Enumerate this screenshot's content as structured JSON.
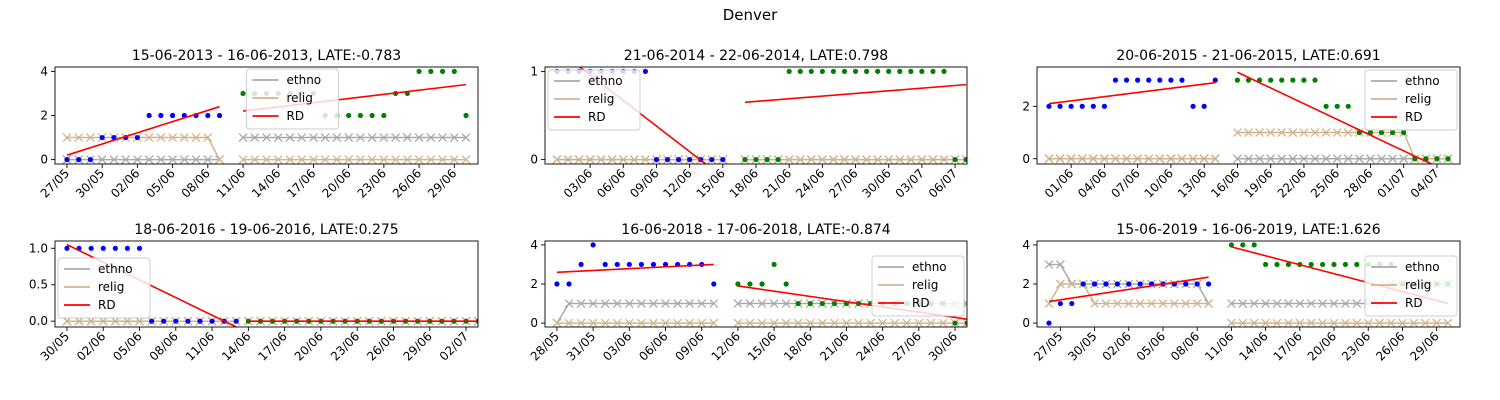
{
  "figure_title": "Denver",
  "colors": {
    "ethno": "#a9a9a9",
    "relig": "#d2b48c",
    "rd": "#ff0000",
    "pre_points": "#0000ff",
    "post_points": "#008000",
    "axis": "#000000"
  },
  "legend_labels": [
    "ethno",
    "relig",
    "RD"
  ],
  "chart_data": [
    {
      "type": "scatter",
      "title": "15-06-2013 - 16-06-2013, LATE:-0.783",
      "x_start": "2013-05-27",
      "x_end": "2013-06-30",
      "threshold": "2013-06-10",
      "ylim": [
        -0.2,
        4.2
      ],
      "yticks": [
        0,
        2,
        4
      ],
      "xtick_labels": [
        "27/05",
        "30/05",
        "02/06",
        "05/06",
        "08/06",
        "11/06",
        "14/06",
        "17/06",
        "20/06",
        "23/06",
        "26/06",
        "29/06"
      ],
      "legend_position": "upper-center",
      "pre_values": [
        0,
        0,
        0,
        1,
        1,
        1,
        1,
        2,
        2,
        2,
        2,
        2,
        2,
        2
      ],
      "post_values": [
        3,
        3,
        3,
        3,
        3,
        3,
        3,
        2,
        2,
        2,
        2,
        2,
        2,
        3,
        3,
        4,
        4,
        4,
        4,
        2
      ],
      "ethno_pre": [
        0,
        0,
        0,
        0,
        0,
        0,
        0,
        0,
        0,
        0,
        0,
        0,
        0,
        0
      ],
      "ethno_post": [
        1,
        1,
        1,
        1,
        1,
        1,
        1,
        1,
        1,
        1,
        1,
        1,
        1,
        1,
        1,
        1,
        1,
        1,
        1,
        1
      ],
      "relig_pre": [
        1,
        1,
        1,
        1,
        1,
        1,
        1,
        1,
        1,
        1,
        1,
        1,
        1,
        0
      ],
      "relig_post": [
        0,
        0,
        0,
        0,
        0,
        0,
        0,
        0,
        0,
        0,
        0,
        0,
        0,
        0,
        0,
        0,
        0,
        0,
        0,
        0
      ],
      "rd_pre": [
        0.2,
        2.4
      ],
      "rd_post": [
        2.2,
        3.4
      ]
    },
    {
      "type": "scatter",
      "title": "21-06-2014 - 22-06-2014, LATE:0.798",
      "x_start": "2014-05-31",
      "x_end": "2014-07-06",
      "threshold": "2014-06-16",
      "ylim": [
        -0.05,
        1.05
      ],
      "yticks": [
        0,
        1
      ],
      "xtick_labels": [
        "03/06",
        "06/06",
        "09/06",
        "12/06",
        "15/06",
        "18/06",
        "21/06",
        "24/06",
        "27/06",
        "30/06",
        "03/07",
        "06/07"
      ],
      "legend_position": "upper-left",
      "pre_values": [
        1,
        1,
        1,
        1,
        1,
        1,
        1,
        1,
        1,
        0,
        0,
        0,
        0,
        0,
        0,
        0
      ],
      "post_values": [
        0,
        0,
        0,
        0,
        1,
        1,
        1,
        1,
        1,
        1,
        1,
        1,
        1,
        1,
        1,
        1,
        1,
        1,
        1,
        0,
        0
      ],
      "ethno_pre": [
        0,
        0,
        0,
        0,
        0,
        0,
        0,
        0,
        0,
        0,
        0,
        0,
        0,
        0,
        0,
        0
      ],
      "ethno_post": [
        0,
        0,
        0,
        0,
        0,
        0,
        0,
        0,
        0,
        0,
        0,
        0,
        0,
        0,
        0,
        0,
        0,
        0,
        0,
        0,
        0
      ],
      "relig_pre": [
        0,
        0,
        0,
        0,
        0,
        0,
        0,
        0,
        0,
        0,
        0,
        0,
        0,
        0,
        0,
        0
      ],
      "relig_post": [
        0,
        0,
        0,
        0,
        0,
        0,
        0,
        0,
        0,
        0,
        0,
        0,
        0,
        0,
        0,
        0,
        0,
        0,
        0,
        0,
        0
      ],
      "rd_pre": [
        1.25,
        -0.2
      ],
      "rd_post": [
        0.65,
        0.85
      ]
    },
    {
      "type": "scatter",
      "title": "20-06-2015 - 21-06-2015, LATE:0.691",
      "x_start": "2015-05-30",
      "x_end": "2015-07-05",
      "threshold": "2015-06-15",
      "ylim": [
        -0.2,
        3.5
      ],
      "yticks": [
        0,
        2
      ],
      "xtick_labels": [
        "01/06",
        "04/06",
        "07/06",
        "10/06",
        "13/06",
        "16/06",
        "19/06",
        "22/06",
        "25/06",
        "28/06",
        "01/07",
        "04/07"
      ],
      "legend_position": "upper-right",
      "pre_values": [
        2,
        2,
        2,
        2,
        2,
        2,
        3,
        3,
        3,
        3,
        3,
        3,
        3,
        2,
        2,
        3
      ],
      "post_values": [
        3,
        3,
        3,
        3,
        3,
        3,
        3,
        3,
        2,
        2,
        2,
        1,
        1,
        1,
        1,
        1,
        0,
        0,
        0,
        0
      ],
      "ethno_pre": [
        0,
        0,
        0,
        0,
        0,
        0,
        0,
        0,
        0,
        0,
        0,
        0,
        0,
        0,
        0,
        0
      ],
      "ethno_post": [
        0,
        0,
        0,
        0,
        0,
        0,
        0,
        0,
        0,
        0,
        0,
        0,
        0,
        0,
        0,
        0,
        0,
        0,
        0,
        0
      ],
      "relig_pre": [
        0,
        0,
        0,
        0,
        0,
        0,
        0,
        0,
        0,
        0,
        0,
        0,
        0,
        0,
        0,
        0
      ],
      "relig_post": [
        1,
        1,
        1,
        1,
        1,
        1,
        1,
        1,
        1,
        1,
        1,
        1,
        1,
        1,
        1,
        1,
        0,
        0,
        0,
        0
      ],
      "rd_pre": [
        2.1,
        2.9
      ],
      "rd_post": [
        3.3,
        -0.5
      ]
    },
    {
      "type": "scatter",
      "title": "18-06-2016 - 19-06-2016, LATE:0.275",
      "x_start": "2016-05-30",
      "x_end": "2016-07-02",
      "threshold": "2016-06-13",
      "ylim": [
        -0.08,
        1.1
      ],
      "yticks": [
        0.0,
        0.5,
        1.0
      ],
      "ytick_labels": [
        "0.0",
        "0.5",
        "1.0"
      ],
      "xtick_labels": [
        "30/05",
        "02/06",
        "05/06",
        "08/06",
        "11/06",
        "14/06",
        "17/06",
        "20/06",
        "23/06",
        "26/06",
        "29/06",
        "02/07"
      ],
      "legend_position": "left",
      "pre_values": [
        1,
        1,
        1,
        1,
        1,
        1,
        1,
        0,
        0,
        0,
        0,
        0,
        0,
        0,
        0
      ],
      "post_values": [
        0,
        0,
        0,
        0,
        0,
        0,
        0,
        0,
        0,
        0,
        0,
        0,
        0,
        0,
        0,
        0,
        0,
        0,
        0,
        0
      ],
      "ethno_pre": [
        0,
        0,
        0,
        0,
        0,
        0,
        0,
        0,
        0,
        0,
        0,
        0,
        0,
        0,
        0
      ],
      "ethno_post": [
        0,
        0,
        0,
        0,
        0,
        0,
        0,
        0,
        0,
        0,
        0,
        0,
        0,
        0,
        0,
        0,
        0,
        0,
        0,
        0
      ],
      "relig_pre": [
        0,
        0,
        0,
        0,
        0,
        0,
        0,
        0,
        0,
        0,
        0,
        0,
        0,
        0,
        0
      ],
      "relig_post": [
        0,
        0,
        0,
        0,
        0,
        0,
        0,
        0,
        0,
        0,
        0,
        0,
        0,
        0,
        0,
        0,
        0,
        0,
        0,
        0
      ],
      "rd_pre": [
        1.05,
        -0.08
      ],
      "rd_post": [
        0.0,
        0.0
      ]
    },
    {
      "type": "scatter",
      "title": "16-06-2018 - 17-06-2018, LATE:-0.874",
      "x_start": "2018-05-28",
      "x_end": "2018-06-30",
      "threshold": "2018-06-11",
      "ylim": [
        -0.2,
        4.2
      ],
      "yticks": [
        0,
        2,
        4
      ],
      "xtick_labels": [
        "28/05",
        "31/05",
        "03/06",
        "06/06",
        "09/06",
        "12/06",
        "15/06",
        "18/06",
        "21/06",
        "24/06",
        "27/06",
        "30/06"
      ],
      "legend_position": "right",
      "pre_values": [
        2,
        2,
        3,
        4,
        3,
        3,
        3,
        3,
        3,
        3,
        3,
        3,
        3,
        2
      ],
      "post_values": [
        2,
        2,
        2,
        3,
        2,
        1,
        1,
        1,
        1,
        1,
        1,
        1,
        1,
        1,
        1,
        1,
        1,
        1,
        0,
        0
      ],
      "ethno_pre": [
        0,
        1,
        1,
        1,
        1,
        1,
        1,
        1,
        1,
        1,
        1,
        1,
        1,
        1
      ],
      "ethno_post": [
        1,
        1,
        1,
        1,
        1,
        1,
        1,
        1,
        1,
        1,
        1,
        1,
        1,
        1,
        1,
        1,
        1,
        1,
        1,
        1
      ],
      "relig_pre": [
        0,
        0,
        0,
        0,
        0,
        0,
        0,
        0,
        0,
        0,
        0,
        0,
        0,
        0
      ],
      "relig_post": [
        0,
        0,
        0,
        0,
        0,
        0,
        0,
        0,
        0,
        0,
        0,
        0,
        0,
        0,
        0,
        0,
        0,
        0,
        0,
        0
      ],
      "rd_pre": [
        2.6,
        3.0
      ],
      "rd_post": [
        1.9,
        0.2
      ]
    },
    {
      "type": "scatter",
      "title": "15-06-2019 - 16-06-2019, LATE:1.626",
      "x_start": "2019-05-26",
      "x_end": "2019-06-30",
      "threshold": "2019-06-10",
      "ylim": [
        -0.2,
        4.2
      ],
      "yticks": [
        0,
        2,
        4
      ],
      "xtick_labels": [
        "27/05",
        "30/05",
        "02/06",
        "05/06",
        "08/06",
        "11/06",
        "14/06",
        "17/06",
        "20/06",
        "23/06",
        "26/06",
        "29/06"
      ],
      "legend_position": "right",
      "pre_values": [
        0,
        1,
        1,
        2,
        2,
        2,
        2,
        2,
        2,
        2,
        2,
        2,
        2,
        2,
        2
      ],
      "post_values": [
        4,
        4,
        4,
        3,
        3,
        3,
        3,
        3,
        3,
        3,
        3,
        3,
        3,
        3,
        3,
        2,
        2,
        2,
        2,
        2
      ],
      "ethno_pre": [
        3,
        3,
        2,
        2,
        2,
        2,
        2,
        2,
        2,
        2,
        2,
        2,
        2,
        2,
        1
      ],
      "ethno_post": [
        1,
        1,
        1,
        1,
        1,
        1,
        1,
        1,
        1,
        1,
        1,
        1,
        1,
        1,
        2,
        2,
        2,
        2,
        2,
        2
      ],
      "relig_pre": [
        1,
        2,
        2,
        2,
        1,
        1,
        1,
        1,
        1,
        1,
        1,
        1,
        1,
        1,
        1
      ],
      "relig_post": [
        0,
        0,
        0,
        0,
        0,
        0,
        0,
        0,
        0,
        0,
        0,
        0,
        0,
        0,
        0,
        0,
        0,
        0,
        0,
        0
      ],
      "rd_pre": [
        1.1,
        2.35
      ],
      "rd_post": [
        3.9,
        1.0
      ]
    }
  ]
}
